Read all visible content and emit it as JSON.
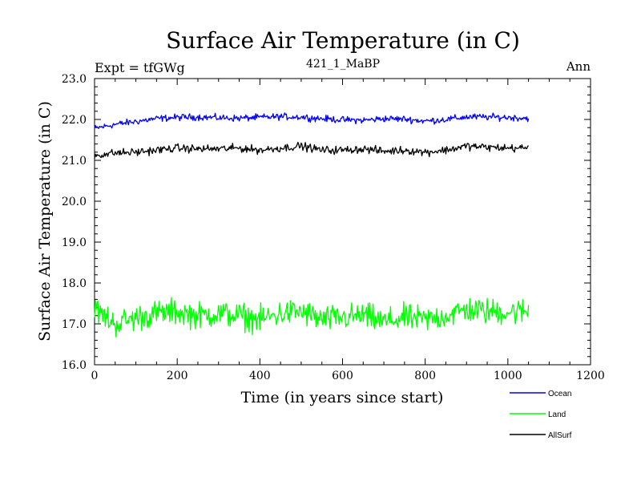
{
  "chart_data": {
    "type": "line",
    "title": "Surface Air Temperature (in C)",
    "subtitle": "421_1_MaBP",
    "experiment_label": "Expt = tfGWg",
    "period_label": "Ann",
    "xlabel": "Time (in years since start)",
    "ylabel": "Surface Air Temperature (in C)",
    "xlim": [
      0,
      1200
    ],
    "ylim": [
      16.0,
      23.0
    ],
    "x_ticks": [
      "0",
      "200",
      "400",
      "600",
      "800",
      "1000",
      "1200"
    ],
    "y_ticks": [
      "16.0",
      "17.0",
      "18.0",
      "19.0",
      "20.0",
      "21.0",
      "22.0",
      "23.0"
    ],
    "x_tick_values": [
      0,
      200,
      400,
      600,
      800,
      1000,
      1200
    ],
    "y_tick_values": [
      16,
      17,
      18,
      19,
      20,
      21,
      22,
      23
    ],
    "legend_position": "bottom-right, outside plot",
    "series": [
      {
        "name": "Ocean",
        "color": "#0000ff",
        "x": [
          0,
          50,
          100,
          150,
          200,
          250,
          300,
          350,
          400,
          450,
          500,
          550,
          600,
          650,
          700,
          750,
          800,
          850,
          900,
          950,
          1000,
          1050
        ],
        "values": [
          21.78,
          21.88,
          21.95,
          22.02,
          22.05,
          22.06,
          22.04,
          22.03,
          22.05,
          22.07,
          22.06,
          22.02,
          21.99,
          21.98,
          22.02,
          22.01,
          21.96,
          22.0,
          22.06,
          22.06,
          22.05,
          22.03
        ],
        "noise": 0.05
      },
      {
        "name": "Land",
        "color": "#00ff00",
        "x": [
          0,
          50,
          100,
          150,
          200,
          250,
          300,
          350,
          400,
          450,
          500,
          550,
          600,
          650,
          700,
          750,
          800,
          850,
          900,
          950,
          1000,
          1050
        ],
        "values": [
          17.35,
          17.0,
          17.15,
          17.25,
          17.3,
          17.2,
          17.25,
          17.2,
          17.1,
          17.25,
          17.3,
          17.1,
          17.15,
          17.2,
          17.05,
          17.15,
          17.1,
          17.2,
          17.35,
          17.3,
          17.3,
          17.3
        ],
        "noise": 0.2
      },
      {
        "name": "AllSurf",
        "color": "#000000",
        "x": [
          0,
          50,
          100,
          150,
          200,
          250,
          300,
          350,
          400,
          450,
          500,
          550,
          600,
          650,
          700,
          750,
          800,
          850,
          900,
          950,
          1000,
          1050
        ],
        "values": [
          21.12,
          21.18,
          21.2,
          21.25,
          21.3,
          21.28,
          21.28,
          21.3,
          21.25,
          21.3,
          21.35,
          21.25,
          21.25,
          21.28,
          21.22,
          21.25,
          21.2,
          21.25,
          21.35,
          21.32,
          21.3,
          21.3
        ],
        "noise": 0.06
      }
    ]
  }
}
